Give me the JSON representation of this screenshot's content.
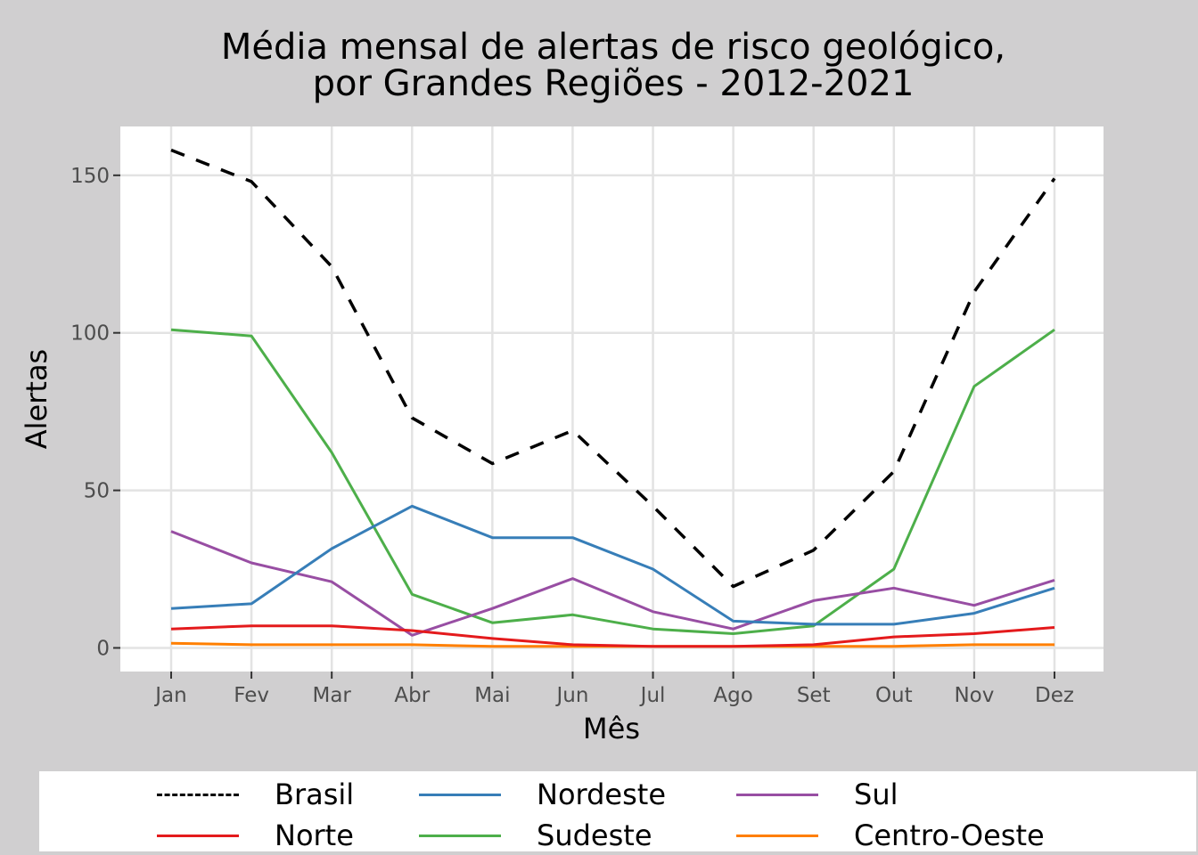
{
  "chart_data": {
    "type": "line",
    "title": "Média mensal de alertas de risco geológico,",
    "subtitle": "por Grandes Regiões - 2012-2021",
    "xlabel": "Mês",
    "ylabel": "Alertas",
    "categories": [
      "Jan",
      "Fev",
      "Mar",
      "Abr",
      "Mai",
      "Jun",
      "Jul",
      "Ago",
      "Set",
      "Out",
      "Nov",
      "Dez"
    ],
    "ylim": [
      -7.5,
      165.5
    ],
    "yticks": [
      0,
      50,
      100,
      150
    ],
    "grid": true,
    "legend_position": "bottom",
    "series": [
      {
        "name": "Brasil",
        "color": "#000000",
        "dash": true,
        "values": [
          158,
          148,
          121,
          73,
          58.5,
          69,
          45,
          19.5,
          31,
          56,
          113,
          149
        ]
      },
      {
        "name": "Norte",
        "color": "#e41a1c",
        "dash": false,
        "values": [
          6,
          7,
          7,
          5.5,
          3,
          1,
          0.5,
          0.5,
          1,
          3.5,
          4.5,
          6.5
        ]
      },
      {
        "name": "Nordeste",
        "color": "#377eb8",
        "dash": false,
        "values": [
          12.5,
          14,
          31.5,
          45,
          35,
          35,
          25,
          8.5,
          7.5,
          7.5,
          11,
          19
        ]
      },
      {
        "name": "Sudeste",
        "color": "#4daf4a",
        "dash": false,
        "values": [
          101,
          99,
          62,
          17,
          8,
          10.5,
          6,
          4.5,
          7,
          25,
          83,
          101
        ]
      },
      {
        "name": "Sul",
        "color": "#984ea3",
        "dash": false,
        "values": [
          37,
          27,
          21,
          4,
          12.5,
          22,
          11.5,
          6,
          15,
          19,
          13.5,
          21.5
        ]
      },
      {
        "name": "Centro-Oeste",
        "color": "#ff7f00",
        "dash": false,
        "values": [
          1.5,
          1,
          1,
          1,
          0.5,
          0.5,
          0.5,
          0.5,
          0.5,
          0.5,
          1,
          1
        ]
      }
    ]
  }
}
